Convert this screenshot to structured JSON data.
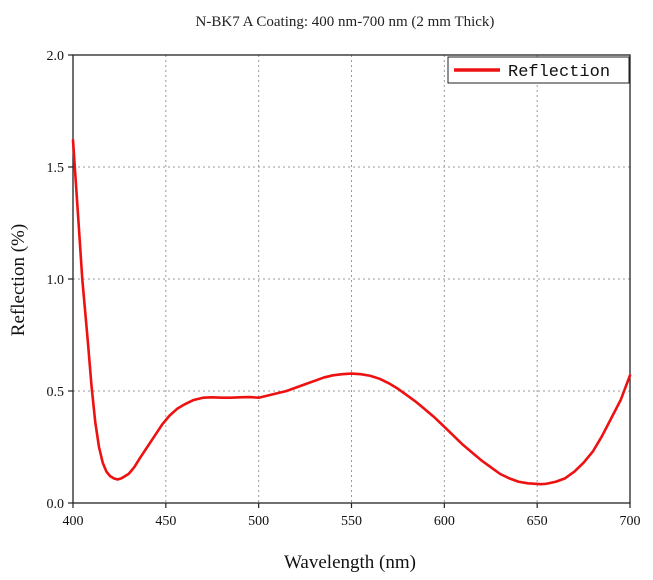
{
  "chart_data": {
    "type": "line",
    "title": "N-BK7 A Coating: 400 nm-700 nm (2 mm Thick)",
    "xlabel": "Wavelength (nm)",
    "ylabel": "Reflection (%)",
    "xlim": [
      400,
      700
    ],
    "ylim": [
      0.0,
      2.0
    ],
    "x_ticks": [
      400,
      450,
      500,
      550,
      600,
      650,
      700
    ],
    "y_ticks": [
      0.0,
      0.5,
      1.0,
      1.5,
      2.0
    ],
    "x_tick_labels": [
      "400",
      "450",
      "500",
      "550",
      "600",
      "650",
      "700"
    ],
    "y_tick_labels": [
      "0.0",
      "0.5",
      "1.0",
      "1.5",
      "2.0"
    ],
    "grid": true,
    "grid_style": "dotted",
    "legend_position": "top-right",
    "series": [
      {
        "name": "Reflection",
        "color": "#ee1111",
        "x": [
          400,
          403,
          405,
          408,
          410,
          412,
          414,
          416,
          418,
          420,
          422,
          424,
          426,
          428,
          430,
          433,
          436,
          440,
          444,
          448,
          452,
          456,
          460,
          465,
          470,
          475,
          480,
          485,
          490,
          495,
          500,
          505,
          510,
          515,
          520,
          525,
          530,
          535,
          540,
          545,
          550,
          555,
          560,
          565,
          570,
          575,
          580,
          585,
          590,
          595,
          600,
          605,
          610,
          615,
          620,
          625,
          630,
          635,
          640,
          645,
          650,
          652,
          655,
          660,
          665,
          670,
          675,
          680,
          685,
          690,
          695,
          700
        ],
        "y": [
          1.62,
          1.25,
          1.0,
          0.72,
          0.52,
          0.36,
          0.25,
          0.18,
          0.14,
          0.12,
          0.11,
          0.105,
          0.11,
          0.12,
          0.13,
          0.16,
          0.2,
          0.25,
          0.3,
          0.35,
          0.39,
          0.42,
          0.44,
          0.46,
          0.47,
          0.472,
          0.47,
          0.47,
          0.472,
          0.473,
          0.47,
          0.48,
          0.49,
          0.5,
          0.515,
          0.53,
          0.545,
          0.56,
          0.57,
          0.575,
          0.578,
          0.575,
          0.568,
          0.555,
          0.535,
          0.51,
          0.48,
          0.45,
          0.415,
          0.38,
          0.34,
          0.3,
          0.26,
          0.225,
          0.19,
          0.16,
          0.13,
          0.11,
          0.095,
          0.088,
          0.085,
          0.084,
          0.086,
          0.095,
          0.11,
          0.14,
          0.18,
          0.23,
          0.3,
          0.38,
          0.46,
          0.57
        ]
      }
    ]
  }
}
